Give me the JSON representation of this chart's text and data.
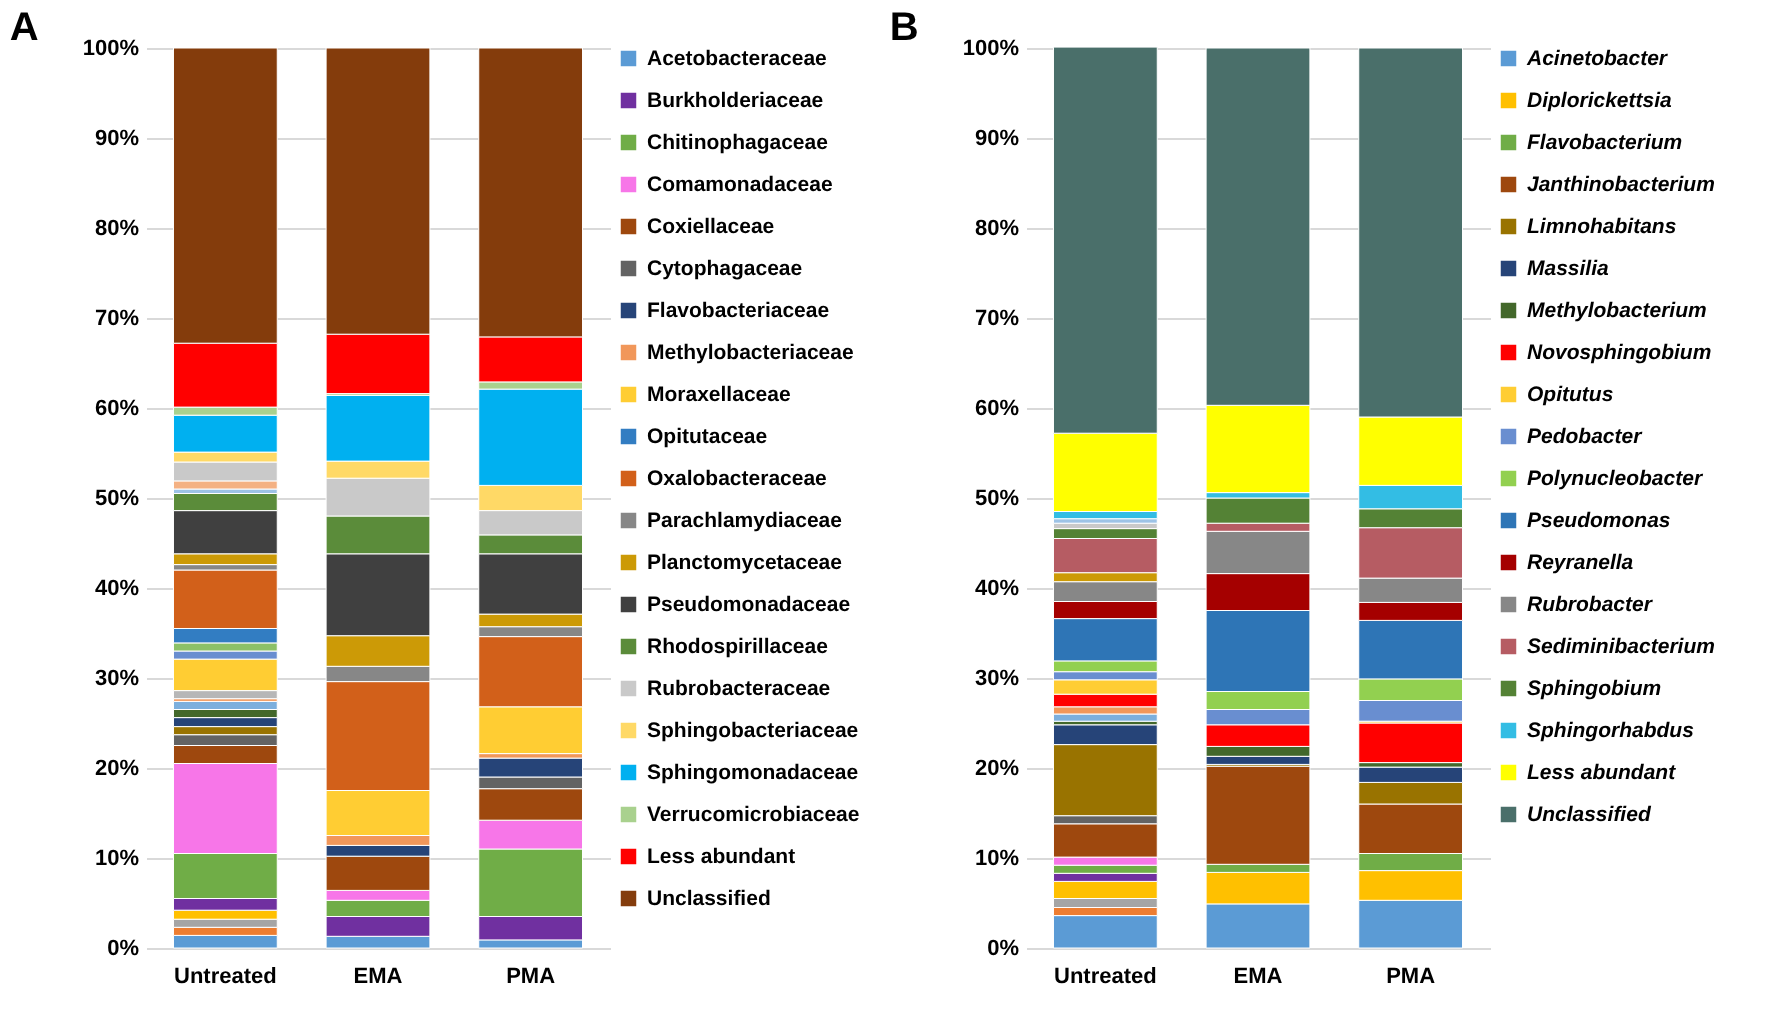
{
  "chart_data": [
    {
      "type": "bar",
      "title": "A",
      "stacked": true,
      "legend": "right",
      "grid": "y",
      "categories": [
        "Untreated",
        "EMA",
        "PMA"
      ],
      "ylim": [
        0,
        100
      ],
      "yticks": [
        {
          "value": 0,
          "label": "0%"
        },
        {
          "value": 10,
          "label": "10%"
        },
        {
          "value": 20,
          "label": "20%"
        },
        {
          "value": 30,
          "label": "30%"
        },
        {
          "value": 40,
          "label": "40%"
        },
        {
          "value": 50,
          "label": "50%"
        },
        {
          "value": 60,
          "label": "60%"
        },
        {
          "value": 70,
          "label": "70%"
        },
        {
          "value": 80,
          "label": "80%"
        },
        {
          "value": 90,
          "label": "90%"
        },
        {
          "value": 100,
          "label": "100%"
        }
      ],
      "series": [
        {
          "name": "Acetobacteraceae",
          "color": "#5b9bd5",
          "values": [
            1.4,
            1.3,
            0.9
          ]
        },
        {
          "color": "#ed7d31",
          "values": [
            0.9,
            null,
            null
          ]
        },
        {
          "color": "#a5a5a5",
          "values": [
            0.9,
            null,
            null
          ]
        },
        {
          "color": "#ffc000",
          "values": [
            1.0,
            null,
            null
          ]
        },
        {
          "name": "Burkholderiaceae",
          "color": "#7030a0",
          "values": [
            1.3,
            2.2,
            2.6
          ]
        },
        {
          "name": "Chitinophagaceae",
          "color": "#70ad47",
          "values": [
            5.0,
            1.8,
            7.5
          ]
        },
        {
          "name": "Comamonadaceae",
          "color": "#f776e8",
          "values": [
            10.0,
            1.1,
            3.2
          ]
        },
        {
          "name": "Coxiellaceae",
          "color": "#9e480e",
          "values": [
            2.0,
            3.8,
            3.5
          ]
        },
        {
          "name": "Cytophagaceae",
          "color": "#636363",
          "values": [
            1.2,
            null,
            1.3
          ]
        },
        {
          "color": "#997300",
          "values": [
            0.9,
            null,
            null
          ]
        },
        {
          "name": "Flavobacteriaceae",
          "color": "#264478",
          "values": [
            1.0,
            1.2,
            2.1
          ]
        },
        {
          "color": "#43682b",
          "values": [
            0.9,
            null,
            null
          ]
        },
        {
          "color": "#7cafdd",
          "values": [
            0.9,
            null,
            null
          ]
        },
        {
          "name": "Methylobacteriaceae",
          "color": "#f1975a",
          "values": [
            0.3,
            1.1,
            0.5
          ]
        },
        {
          "color": "#b7b7b7",
          "values": [
            0.9,
            null,
            null
          ]
        },
        {
          "name": "Moraxellaceae",
          "color": "#ffcd33",
          "values": [
            3.5,
            5.0,
            5.2
          ]
        },
        {
          "color": "#698ed0",
          "values": [
            0.9,
            null,
            null
          ]
        },
        {
          "color": "#8cc168",
          "values": [
            0.9,
            null,
            null
          ]
        },
        {
          "name": "Opitutaceae",
          "color": "#327dc2",
          "values": [
            1.6,
            null,
            null
          ]
        },
        {
          "name": "Oxalobacteraceae",
          "color": "#d2601a",
          "values": [
            6.5,
            12.1,
            7.8
          ]
        },
        {
          "name": "Parachlamydiaceae",
          "color": "#878787",
          "values": [
            0.6,
            1.7,
            1.1
          ]
        },
        {
          "name": "Planctomycetaceae",
          "color": "#cc9a06",
          "values": [
            1.2,
            3.4,
            1.4
          ]
        },
        {
          "name": "Pseudomonadaceae",
          "color": "#404040",
          "values": [
            4.8,
            9.1,
            6.7
          ]
        },
        {
          "name": "Rhodospirillaceae",
          "color": "#5b8c3a",
          "values": [
            1.9,
            4.2,
            2.1
          ]
        },
        {
          "color": "#9dc3e6",
          "values": [
            0.5,
            null,
            null
          ]
        },
        {
          "color": "#f4b183",
          "values": [
            0.9,
            null,
            null
          ]
        },
        {
          "name": "Rubrobacteraceae",
          "color": "#c9c9c9",
          "values": [
            2.1,
            4.2,
            2.7
          ]
        },
        {
          "name": "Sphingobacteriaceae",
          "color": "#ffd966",
          "values": [
            1.1,
            1.9,
            2.8
          ]
        },
        {
          "name": "Sphingomonadaceae",
          "color": "#00b0f0",
          "values": [
            4.1,
            7.3,
            10.7
          ]
        },
        {
          "name": "Verrucomicrobiaceae",
          "color": "#a9d18e",
          "values": [
            0.9,
            0.2,
            0.8
          ]
        },
        {
          "name": "Less abundant",
          "color": "#ff0000",
          "values": [
            7.1,
            6.6,
            5.0
          ]
        },
        {
          "name": "Unclassified",
          "color": "#843c0c",
          "values": [
            32.8,
            31.8,
            32.1
          ]
        }
      ]
    },
    {
      "type": "bar",
      "title": "B",
      "stacked": true,
      "legend": "right",
      "grid": "y",
      "categories": [
        "Untreated",
        "EMA",
        "PMA"
      ],
      "ylim": [
        0,
        100
      ],
      "yticks": [
        {
          "value": 0,
          "label": "0%"
        },
        {
          "value": 10,
          "label": "10%"
        },
        {
          "value": 20,
          "label": "20%"
        },
        {
          "value": 30,
          "label": "30%"
        },
        {
          "value": 40,
          "label": "40%"
        },
        {
          "value": 50,
          "label": "50%"
        },
        {
          "value": 60,
          "label": "60%"
        },
        {
          "value": 70,
          "label": "70%"
        },
        {
          "value": 80,
          "label": "80%"
        },
        {
          "value": 90,
          "label": "90%"
        },
        {
          "value": 100,
          "label": "100%"
        }
      ],
      "series": [
        {
          "name": "Acinetobacter",
          "color": "#5b9bd5",
          "values": [
            3.6,
            4.9,
            5.3
          ]
        },
        {
          "color": "#ed7d31",
          "values": [
            0.9,
            null,
            null
          ]
        },
        {
          "color": "#a5a5a5",
          "values": [
            1.0,
            null,
            null
          ]
        },
        {
          "name": "Diplorickettsia",
          "color": "#ffc000",
          "values": [
            1.9,
            3.5,
            3.3
          ]
        },
        {
          "color": "#7030a0",
          "values": [
            0.9,
            null,
            null
          ]
        },
        {
          "name": "Flavobacterium",
          "color": "#70ad47",
          "values": [
            0.9,
            0.9,
            1.9
          ]
        },
        {
          "color": "#f776e8",
          "values": [
            0.9,
            null,
            null
          ]
        },
        {
          "name": "Janthinobacterium",
          "color": "#9e480e",
          "values": [
            3.7,
            10.9,
            5.5
          ]
        },
        {
          "color": "#636363",
          "values": [
            0.9,
            null,
            null
          ]
        },
        {
          "name": "Limnohabitans",
          "color": "#997300",
          "values": [
            7.9,
            0.2,
            2.4
          ]
        },
        {
          "name": "Massilia",
          "color": "#264478",
          "values": [
            2.2,
            0.9,
            1.7
          ]
        },
        {
          "name": "Methylobacterium",
          "color": "#43682b",
          "values": [
            0.4,
            1.1,
            0.5
          ]
        },
        {
          "color": "#7cafdd",
          "values": [
            0.8,
            null,
            null
          ]
        },
        {
          "color": "#f1975a",
          "values": [
            0.8,
            null,
            null
          ]
        },
        {
          "name": "Novosphingobium",
          "color": "#ff0000",
          "values": [
            1.4,
            2.4,
            4.4
          ]
        },
        {
          "name": "Opitutus",
          "color": "#ffcd33",
          "values": [
            1.6,
            null,
            0.2
          ]
        },
        {
          "name": "Pedobacter",
          "color": "#698ed0",
          "values": [
            0.9,
            1.7,
            2.3
          ]
        },
        {
          "name": "Polynucleobacter",
          "color": "#92d050",
          "values": [
            1.2,
            2.0,
            2.4
          ]
        },
        {
          "name": "Pseudomonas",
          "color": "#2e75b6",
          "values": [
            4.7,
            9.0,
            6.5
          ]
        },
        {
          "name": "Reyranella",
          "color": "#a50000",
          "values": [
            1.9,
            4.1,
            2.0
          ]
        },
        {
          "name": "Rubrobacter",
          "color": "#878787",
          "values": [
            2.2,
            4.7,
            2.7
          ]
        },
        {
          "color": "#cc9a06",
          "values": [
            1.0,
            null,
            null
          ]
        },
        {
          "name": "Sediminibacterium",
          "color": "#b65c63",
          "values": [
            3.8,
            0.9,
            5.6
          ]
        },
        {
          "name": "Sphingobium",
          "color": "#548235",
          "values": [
            1.1,
            2.8,
            2.1
          ]
        },
        {
          "color": "#c9c9c9",
          "values": [
            0.6,
            null,
            null
          ]
        },
        {
          "color": "#9dc3e6",
          "values": [
            0.5,
            null,
            null
          ]
        },
        {
          "name": "Sphingorhabdus",
          "color": "#33bde4",
          "values": [
            0.8,
            0.6,
            2.6
          ]
        },
        {
          "name": "Less abundant",
          "color": "#ffff00",
          "values": [
            8.7,
            9.7,
            7.6
          ]
        },
        {
          "name": "Unclassified",
          "color": "#4a6f6a",
          "values": [
            42.9,
            39.7,
            41.0
          ]
        }
      ]
    }
  ]
}
